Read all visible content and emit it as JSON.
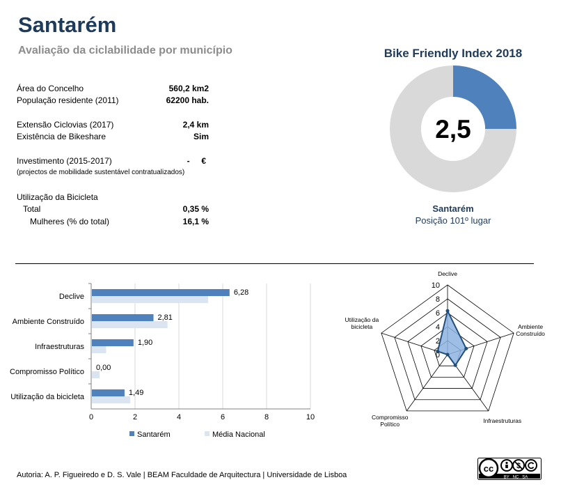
{
  "header": {
    "title": "Santarém",
    "subtitle": "Avaliação da ciclabilidade por município"
  },
  "info": {
    "area": {
      "label": "Área do Concelho",
      "value": "560,2 km2"
    },
    "population": {
      "label": "População residente (2011)",
      "value": "62200 hab."
    },
    "cycleways": {
      "label": "Extensão Ciclovias (2017)",
      "value": "2,4 km"
    },
    "bikeshare": {
      "label": "Existência de Bikeshare",
      "value": "Sim"
    },
    "investment": {
      "label": "Investimento (2015-2017)",
      "value": "-     €",
      "note": "(projectos de mobilidade sustentável contratualizados)"
    },
    "usage": {
      "label": "Utilização da Bicicleta"
    },
    "usage_total": {
      "label": "Total",
      "value": "0,35 %"
    },
    "usage_women": {
      "label": "Mulheres (% do total)",
      "value": "16,1 %"
    }
  },
  "bike_index": {
    "title": "Bike Friendly Index 2018",
    "score": "2,5",
    "score_value": 2.5,
    "max": 10,
    "city": "Santarém",
    "position": "Posição 101º lugar",
    "colors": {
      "fill": "#4f81bd",
      "rest": "#d9d9d9"
    }
  },
  "footer": {
    "credits": "Autoria: A. P. Figueiredo e D. S. Vale | BEAM Faculdade de Arquitectura | Universidade de Lisboa"
  },
  "cc_badge": {
    "text": "cc",
    "sub": "BY   NC   SA"
  },
  "colors": {
    "primary": "#4f81bd",
    "secondary": "#dbe5f1",
    "title": "#1f3b5c",
    "grid": "#d9d9d9"
  },
  "chart_data": [
    {
      "type": "bar",
      "orientation": "horizontal",
      "categories": [
        "Declive",
        "Ambiente Construído",
        "Infraestruturas",
        "Compromisso Político",
        "Utilização da bicicleta"
      ],
      "series": [
        {
          "name": "Santarém",
          "values": [
            6.28,
            2.81,
            1.9,
            0.0,
            1.49
          ],
          "labels": [
            "6,28",
            "2,81",
            "1,90",
            "0,00",
            "1,49"
          ],
          "color": "#4f81bd"
        },
        {
          "name": "Média Nacional",
          "values": [
            5.3,
            3.45,
            0.65,
            0.35,
            1.75
          ],
          "color": "#dbe5f1"
        }
      ],
      "xlim": [
        0,
        10
      ],
      "xticks": [
        0,
        2,
        4,
        6,
        8,
        10
      ],
      "grid": true,
      "legend": "bottom"
    },
    {
      "type": "radar",
      "axes": [
        "Declive",
        "Ambiente Construído",
        "Infraestruturas",
        "Compromisso Político",
        "Utilização da bicicleta"
      ],
      "axis_labels": [
        [
          "Declive"
        ],
        [
          "Ambiente",
          "Construído"
        ],
        [
          "Infraestruturas"
        ],
        [
          "Compromisso",
          "Político"
        ],
        [
          "Utilização da",
          "bicicleta"
        ]
      ],
      "values": [
        6.28,
        2.81,
        1.9,
        0.0,
        1.49
      ],
      "rlim": [
        0,
        10
      ],
      "rticks": [
        0,
        2,
        4,
        6,
        8,
        10
      ],
      "color": "#1f4e79",
      "fill": "#8db3e2"
    }
  ]
}
